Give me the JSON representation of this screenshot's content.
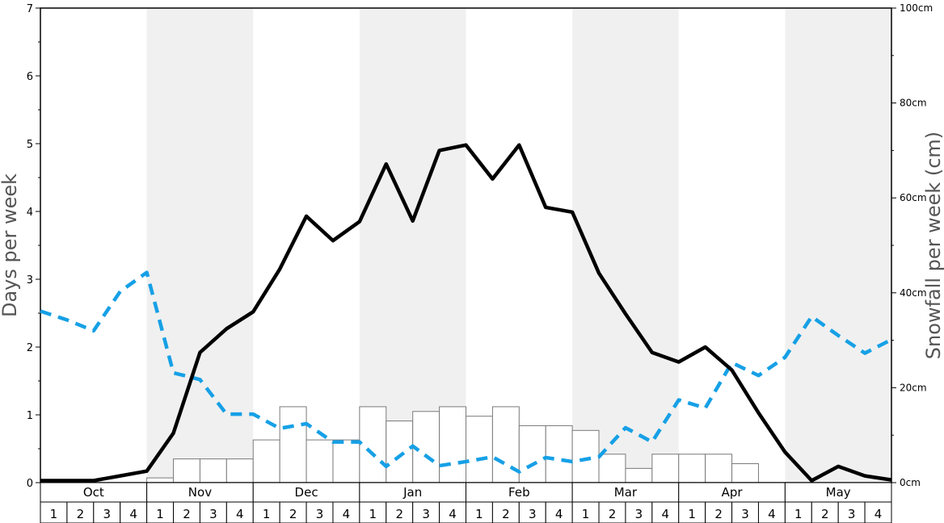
{
  "chart_data": {
    "type": "line",
    "months": [
      "Oct",
      "Nov",
      "Dec",
      "Jan",
      "Feb",
      "Mar",
      "Apr",
      "May"
    ],
    "weeks": [
      "1",
      "2",
      "3",
      "4"
    ],
    "shaded_months": [
      "Nov",
      "Jan",
      "Mar",
      "May"
    ],
    "ylabel_left": "Days per week",
    "ylabel_right": "Snowfall per week (cm)",
    "ylim_left": [
      0,
      7
    ],
    "ylim_right": [
      0,
      100
    ],
    "left_ticks": [
      0,
      1,
      2,
      3,
      4,
      5,
      6,
      7
    ],
    "right_ticks": [
      "0cm",
      "20cm",
      "40cm",
      "60cm",
      "80cm",
      "100cm"
    ],
    "snowfall_cm": [
      0,
      0,
      0,
      0,
      1,
      5,
      5,
      5,
      9,
      16,
      9,
      9,
      16,
      13,
      15,
      16,
      14,
      16,
      12,
      12,
      11,
      6,
      3,
      6,
      6,
      6,
      4,
      0,
      0,
      0,
      0,
      0
    ],
    "days_solid": [
      0.03,
      0.03,
      0.03,
      0.1,
      0.17,
      0.73,
      1.92,
      2.27,
      2.52,
      3.15,
      3.93,
      3.57,
      3.85,
      4.7,
      3.86,
      4.9,
      4.98,
      4.48,
      4.98,
      4.06,
      3.99,
      3.09,
      2.49,
      1.92,
      1.78,
      2.0,
      1.66,
      1.03,
      0.45,
      0.03,
      0.24,
      0.1,
      0.04
    ],
    "days_dashed": [
      2.53,
      2.4,
      2.24,
      2.82,
      3.1,
      1.62,
      1.52,
      1.01,
      1.01,
      0.8,
      0.87,
      0.6,
      0.6,
      0.24,
      0.54,
      0.25,
      0.31,
      0.38,
      0.16,
      0.37,
      0.31,
      0.38,
      0.81,
      0.6,
      1.22,
      1.1,
      1.77,
      1.58,
      1.85,
      2.45,
      2.17,
      1.91,
      2.11
    ],
    "colors": {
      "solid_line": "#000000",
      "dashed_line": "#16a0e6",
      "shade": "#f0f0f0",
      "bar_fill": "#ffffff",
      "bar_stroke": "#7a7a7a"
    }
  }
}
